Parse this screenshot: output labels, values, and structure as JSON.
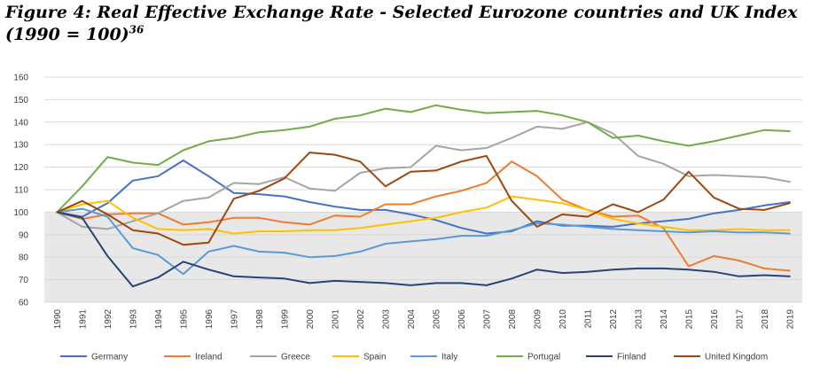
{
  "figure": {
    "title": "Figure 4: Real Effective Exchange Rate - Selected Eurozone countries and UK Index (1990 = 100)",
    "footnote": "36"
  },
  "chart_data": {
    "type": "line",
    "title": "",
    "xlabel": "",
    "ylabel": "",
    "ylim": [
      60,
      160
    ],
    "yticks": [
      60,
      70,
      80,
      90,
      100,
      110,
      120,
      130,
      140,
      150,
      160
    ],
    "x": [
      1990,
      1991,
      1992,
      1993,
      1994,
      1995,
      1996,
      1997,
      1998,
      1999,
      2000,
      2001,
      2002,
      2003,
      2004,
      2005,
      2006,
      2007,
      2008,
      2009,
      2010,
      2011,
      2012,
      2013,
      2014,
      2015,
      2016,
      2017,
      2018,
      2019
    ],
    "grid": true,
    "shaded_band": [
      60,
      100
    ],
    "legend_position": "bottom",
    "series": [
      {
        "name": "Germany",
        "color": "#4472C4",
        "values": [
          100,
          98,
          104,
          114,
          116,
          123,
          116,
          108.5,
          108,
          107,
          104.5,
          102.5,
          101,
          101,
          99,
          96.5,
          93,
          90.5,
          91.5,
          96,
          94,
          94,
          93.5,
          95,
          96,
          97,
          99.5,
          101,
          103,
          104.5
        ]
      },
      {
        "name": "Ireland",
        "color": "#ED7D31",
        "values": [
          100,
          97,
          99,
          99.5,
          99.5,
          94.5,
          95.5,
          97.5,
          97.5,
          95.5,
          94.5,
          98.5,
          98,
          103.5,
          103.5,
          107,
          109.5,
          113,
          122.5,
          116,
          105.5,
          101,
          98,
          98.5,
          93,
          76,
          80.5,
          78.5,
          75,
          74
        ]
      },
      {
        "name": "Greece",
        "color": "#A5A5A5",
        "values": [
          100,
          93.5,
          92.5,
          96,
          99.5,
          105,
          106.5,
          113,
          112.5,
          115.5,
          110.5,
          109.5,
          117.5,
          119.5,
          120,
          129.5,
          127.5,
          128.5,
          133,
          138,
          137,
          140,
          135,
          125,
          121.5,
          116,
          116.5,
          116,
          115.5,
          113.5
        ]
      },
      {
        "name": "Spain",
        "color": "#FFC000",
        "values": [
          100,
          103.5,
          105,
          97.5,
          92.5,
          92,
          92.5,
          90.5,
          91.5,
          91.5,
          92,
          92,
          93,
          94.5,
          96,
          97.5,
          100,
          102,
          107,
          105.5,
          104,
          101,
          97,
          95,
          93.5,
          92,
          92,
          92.5,
          92,
          92
        ]
      },
      {
        "name": "Italy",
        "color": "#5B9BD5",
        "values": [
          100,
          101.5,
          98,
          84,
          81,
          72.5,
          82.5,
          85,
          82.5,
          82,
          80,
          80.5,
          82.5,
          86,
          87,
          88,
          89.5,
          89.5,
          92,
          95,
          94.5,
          93.5,
          92.5,
          92,
          91.5,
          91,
          91.5,
          91,
          91,
          90.5
        ]
      },
      {
        "name": "Portugal",
        "color": "#70AD47",
        "values": [
          100,
          111.5,
          124.5,
          122,
          121,
          127.5,
          131.5,
          133,
          135.5,
          136.5,
          138,
          141.5,
          143,
          146,
          144.5,
          147.5,
          145.5,
          144,
          144.5,
          145,
          143,
          140,
          133,
          134,
          131.5,
          129.5,
          131.5,
          134,
          136.5,
          136
        ]
      },
      {
        "name": "Finland",
        "color": "#264478",
        "values": [
          100,
          97.5,
          80.5,
          67,
          71,
          78,
          74.5,
          71.5,
          71,
          70.5,
          68.5,
          69.5,
          69,
          68.5,
          67.5,
          68.5,
          68.5,
          67.5,
          70.5,
          74.5,
          73,
          73.5,
          74.5,
          75,
          75,
          74.5,
          73.5,
          71.5,
          72,
          71.5
        ]
      },
      {
        "name": "United Kingdom",
        "color": "#9E480E",
        "values": [
          100,
          105,
          99,
          92,
          90.5,
          85.5,
          86.5,
          106,
          109.5,
          115,
          126.5,
          125.5,
          122.5,
          111.5,
          118,
          118.5,
          122.5,
          125,
          105,
          93.5,
          99,
          98,
          103.5,
          100,
          105.5,
          118,
          106.5,
          101.5,
          101,
          104
        ]
      }
    ]
  }
}
